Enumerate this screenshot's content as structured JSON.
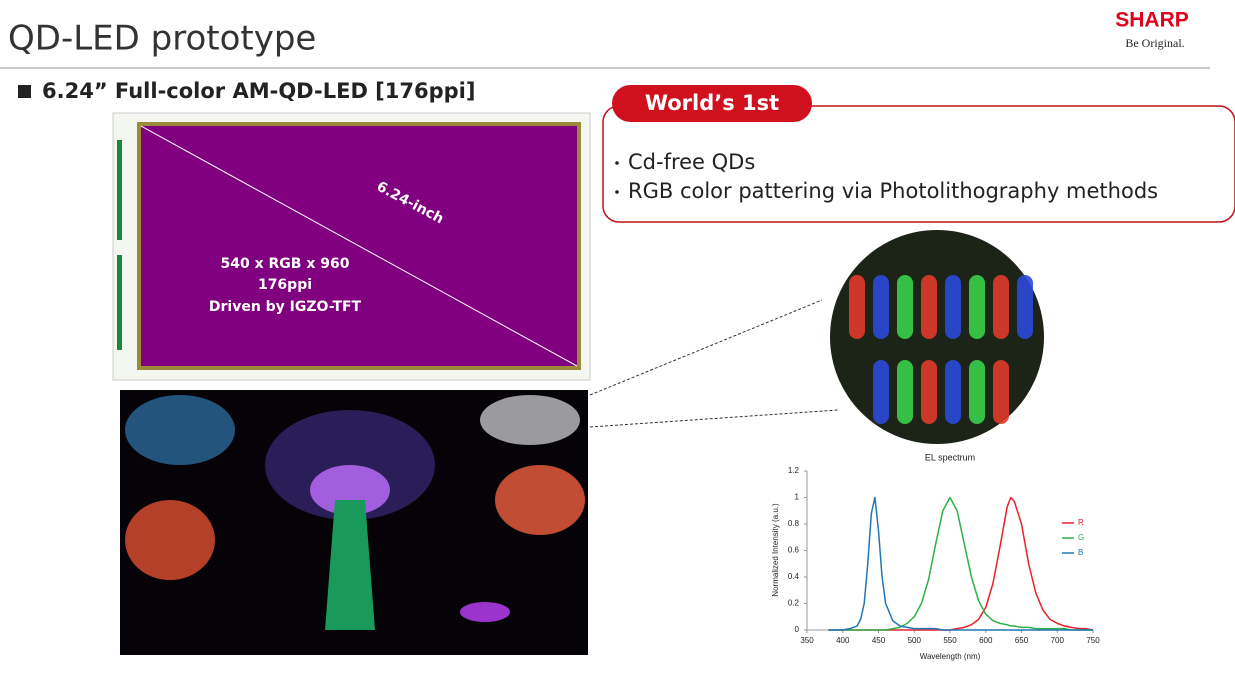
{
  "header": {
    "title": "QD-LED prototype",
    "logo": "SHARP",
    "tagline": "Be Original."
  },
  "subtitle": "6.24” Full-color AM-QD-LED [176ppi]",
  "panel": {
    "size": "6.24-inch",
    "lines": [
      "540 x RGB x 960",
      "176ppi",
      "Driven by IGZO-TFT"
    ]
  },
  "callout": {
    "badge": "World’s 1st",
    "bullets": [
      "Cd-free QDs",
      "RGB color pattering via Photolithography methods"
    ]
  },
  "chart_data": {
    "type": "line",
    "title": "EL spectrum",
    "x_label": "Wavelength (nm)",
    "y_label": "Normalized Intensity (a.u.)",
    "x": [
      380,
      390,
      400,
      410,
      420,
      425,
      430,
      435,
      440,
      445,
      450,
      455,
      460,
      470,
      480,
      490,
      500,
      510,
      520,
      530,
      540,
      550,
      560,
      570,
      580,
      590,
      600,
      610,
      620,
      630,
      635,
      640,
      650,
      660,
      670,
      680,
      690,
      700,
      710,
      720,
      730,
      740,
      750
    ],
    "series": [
      {
        "name": "R",
        "color": "#e8202a",
        "values": [
          0,
          0,
          0,
          0,
          0,
          0,
          0,
          0,
          0,
          0,
          0,
          0,
          0,
          0,
          0,
          0,
          0,
          0,
          0,
          0,
          0,
          0,
          0.01,
          0.02,
          0.04,
          0.08,
          0.17,
          0.35,
          0.63,
          0.93,
          1,
          0.97,
          0.8,
          0.5,
          0.28,
          0.15,
          0.08,
          0.05,
          0.03,
          0.02,
          0.01,
          0.01,
          0
        ]
      },
      {
        "name": "G",
        "color": "#2db04b",
        "values": [
          0,
          0,
          0,
          0,
          0,
          0,
          0,
          0,
          0,
          0,
          0,
          0,
          0,
          0.01,
          0.02,
          0.05,
          0.1,
          0.2,
          0.38,
          0.65,
          0.9,
          1,
          0.9,
          0.65,
          0.4,
          0.22,
          0.12,
          0.07,
          0.05,
          0.04,
          0.03,
          0.03,
          0.02,
          0.02,
          0.01,
          0.01,
          0.01,
          0.01,
          0.01,
          0,
          0,
          0,
          0
        ]
      },
      {
        "name": "B",
        "color": "#1f77b4",
        "values": [
          0,
          0,
          0,
          0.01,
          0.03,
          0.08,
          0.2,
          0.5,
          0.88,
          1,
          0.75,
          0.4,
          0.2,
          0.07,
          0.03,
          0.02,
          0.01,
          0.01,
          0.01,
          0.01,
          0,
          0,
          0,
          0,
          0,
          0,
          0,
          0,
          0,
          0,
          0,
          0,
          0,
          0,
          0,
          0,
          0,
          0,
          0,
          0,
          0,
          0,
          0
        ]
      }
    ],
    "xlim": [
      350,
      750
    ],
    "xticks": [
      350,
      400,
      450,
      500,
      550,
      600,
      650,
      700,
      750
    ],
    "ylim": [
      0,
      1.2
    ],
    "yticks": [
      0,
      0.2,
      0.4,
      0.6,
      0.8,
      1,
      1.2
    ],
    "grid": false,
    "legend": "right"
  }
}
